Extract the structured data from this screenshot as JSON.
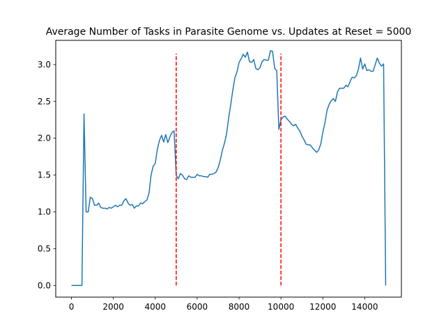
{
  "chart_data": {
    "type": "line",
    "title": "Average Number of Tasks in Parasite Genome vs. Updates at Reset = 5000",
    "xlabel": "",
    "ylabel": "",
    "xlim": [
      -750,
      15750
    ],
    "ylim": [
      -0.158,
      3.33
    ],
    "xticks": [
      0,
      2000,
      4000,
      6000,
      8000,
      10000,
      12000,
      14000
    ],
    "yticks": [
      0.0,
      0.5,
      1.0,
      1.5,
      2.0,
      2.5,
      3.0
    ],
    "xtick_labels": [
      "0",
      "2000",
      "4000",
      "6000",
      "8000",
      "10000",
      "12000",
      "14000"
    ],
    "ytick_labels": [
      "0.0",
      "0.5",
      "1.0",
      "1.5",
      "2.0",
      "2.5",
      "3.0"
    ],
    "grid": false,
    "series": [
      {
        "color": "#1f77b4",
        "x": [
          0,
          100,
          200,
          300,
          400,
          500,
          600,
          700,
          800,
          900,
          1000,
          1100,
          1200,
          1300,
          1400,
          1500,
          1600,
          1700,
          1800,
          1900,
          2000,
          2100,
          2200,
          2300,
          2400,
          2500,
          2600,
          2700,
          2800,
          2900,
          3000,
          3100,
          3200,
          3300,
          3400,
          3500,
          3600,
          3700,
          3800,
          3900,
          4000,
          4100,
          4200,
          4300,
          4400,
          4500,
          4600,
          4700,
          4800,
          4900,
          5000,
          5100,
          5200,
          5300,
          5400,
          5500,
          5600,
          5700,
          5800,
          5900,
          6000,
          6100,
          6200,
          6300,
          6400,
          6500,
          6600,
          6700,
          6800,
          6900,
          7000,
          7100,
          7200,
          7300,
          7400,
          7500,
          7600,
          7700,
          7800,
          7900,
          8000,
          8100,
          8200,
          8300,
          8400,
          8500,
          8600,
          8700,
          8800,
          8900,
          9000,
          9100,
          9200,
          9300,
          9400,
          9500,
          9600,
          9700,
          9800,
          9900,
          10000,
          10100,
          10200,
          10300,
          10400,
          10500,
          10600,
          10700,
          10800,
          10900,
          11000,
          11100,
          11200,
          11300,
          11400,
          11500,
          11600,
          11700,
          11800,
          11900,
          12000,
          12100,
          12200,
          12300,
          12400,
          12500,
          12600,
          12700,
          12800,
          12900,
          13000,
          13100,
          13200,
          13300,
          13400,
          13500,
          13600,
          13700,
          13800,
          13900,
          14000,
          14100,
          14200,
          14300,
          14400,
          14500,
          14600,
          14700,
          14800,
          14900,
          15000
        ],
        "y": [
          0.0,
          0.0,
          0.0,
          0.0,
          0.0,
          0.0,
          2.33,
          1.0,
          1.0,
          1.2,
          1.18,
          1.09,
          1.09,
          1.12,
          1.06,
          1.05,
          1.05,
          1.04,
          1.06,
          1.05,
          1.07,
          1.09,
          1.07,
          1.09,
          1.09,
          1.15,
          1.18,
          1.12,
          1.09,
          1.1,
          1.05,
          1.08,
          1.08,
          1.12,
          1.11,
          1.14,
          1.16,
          1.25,
          1.5,
          1.62,
          1.66,
          1.85,
          1.97,
          2.04,
          1.95,
          2.05,
          1.94,
          2.02,
          2.08,
          2.1,
          1.5,
          1.45,
          1.52,
          1.5,
          1.45,
          1.44,
          1.49,
          1.47,
          1.47,
          1.47,
          1.51,
          1.49,
          1.49,
          1.48,
          1.48,
          1.47,
          1.51,
          1.51,
          1.52,
          1.54,
          1.6,
          1.7,
          1.83,
          1.93,
          2.05,
          2.27,
          2.45,
          2.65,
          2.82,
          2.9,
          3.03,
          3.08,
          3.14,
          3.1,
          3.17,
          3.04,
          3.03,
          3.07,
          2.95,
          2.93,
          2.96,
          3.04,
          3.07,
          3.06,
          3.06,
          3.19,
          3.18,
          2.95,
          2.92,
          2.12,
          2.25,
          2.29,
          2.3,
          2.26,
          2.23,
          2.19,
          2.17,
          2.19,
          2.14,
          2.1,
          2.03,
          1.98,
          1.92,
          1.91,
          1.91,
          1.87,
          1.84,
          1.81,
          1.84,
          1.92,
          2.08,
          2.21,
          2.38,
          2.46,
          2.51,
          2.54,
          2.5,
          2.63,
          2.68,
          2.68,
          2.68,
          2.72,
          2.7,
          2.77,
          2.83,
          2.82,
          2.85,
          2.94,
          3.09,
          2.94,
          3.01,
          2.92,
          2.93,
          2.91,
          2.91,
          3.0,
          3.09,
          3.02,
          2.98,
          3.01,
          0.0
        ]
      }
    ],
    "vlines": {
      "color": "#ff0000",
      "style": "dashed",
      "x": [
        5000,
        10000
      ],
      "ymin": 0.0,
      "ymax": 3.15
    }
  }
}
